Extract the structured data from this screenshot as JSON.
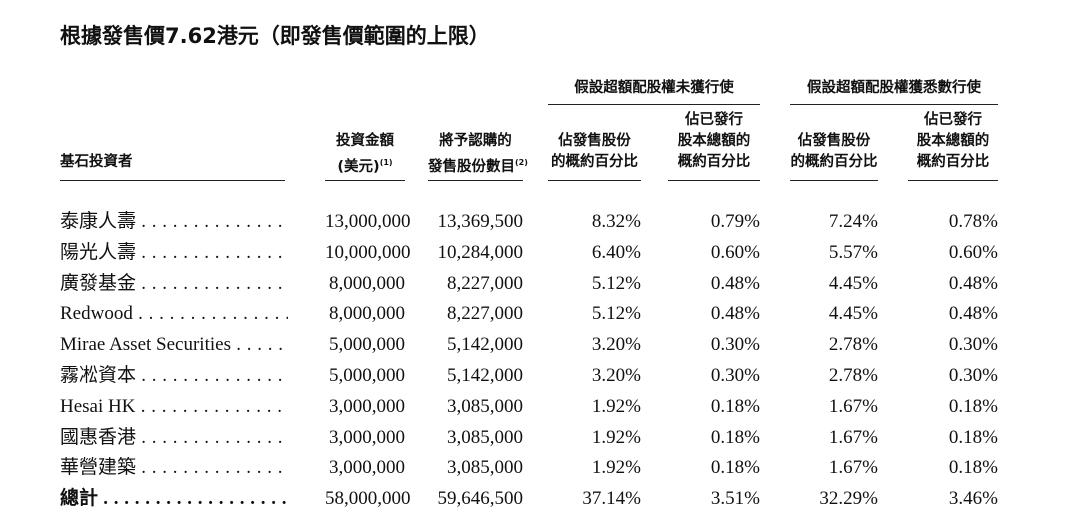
{
  "title": "根據發售價7.62港元（即發售價範圍的上限）",
  "table": {
    "groups": [
      "假設超額配股權未獲行使",
      "假設超額配股權獲悉數行使"
    ],
    "columns": [
      {
        "lines": [
          "基石投資者"
        ]
      },
      {
        "lines": [
          "投資金額",
          "(美元)"
        ],
        "note": "(1)"
      },
      {
        "lines": [
          "將予認購的",
          "發售股份數目"
        ],
        "note": "(2)"
      },
      {
        "lines": [
          "佔發售股份",
          "的概約百分比"
        ]
      },
      {
        "lines": [
          "佔已發行",
          "股本總額的",
          "概約百分比"
        ]
      },
      {
        "lines": [
          "佔發售股份",
          "的概約百分比"
        ]
      },
      {
        "lines": [
          "佔已發行",
          "股本總額的",
          "概約百分比"
        ]
      }
    ],
    "rows": [
      [
        "泰康人壽",
        "13,000,000",
        "13,369,500",
        "8.32%",
        "0.79%",
        "7.24%",
        "0.78%"
      ],
      [
        "陽光人壽",
        "10,000,000",
        "10,284,000",
        "6.40%",
        "0.60%",
        "5.57%",
        "0.60%"
      ],
      [
        "廣發基金",
        "8,000,000",
        "8,227,000",
        "5.12%",
        "0.48%",
        "4.45%",
        "0.48%"
      ],
      [
        "Redwood",
        "8,000,000",
        "8,227,000",
        "5.12%",
        "0.48%",
        "4.45%",
        "0.48%"
      ],
      [
        "Mirae Asset Securities",
        "5,000,000",
        "5,142,000",
        "3.20%",
        "0.30%",
        "2.78%",
        "0.30%"
      ],
      [
        "霧凇資本",
        "5,000,000",
        "5,142,000",
        "3.20%",
        "0.30%",
        "2.78%",
        "0.30%"
      ],
      [
        "Hesai HK",
        "3,000,000",
        "3,085,000",
        "1.92%",
        "0.18%",
        "1.67%",
        "0.18%"
      ],
      [
        "國惠香港",
        "3,000,000",
        "3,085,000",
        "1.92%",
        "0.18%",
        "1.67%",
        "0.18%"
      ],
      [
        "華營建築",
        "3,000,000",
        "3,085,000",
        "1.92%",
        "0.18%",
        "1.67%",
        "0.18%"
      ],
      [
        "總計",
        "58,000,000",
        "59,646,500",
        "37.14%",
        "3.51%",
        "32.29%",
        "3.46%"
      ]
    ]
  }
}
